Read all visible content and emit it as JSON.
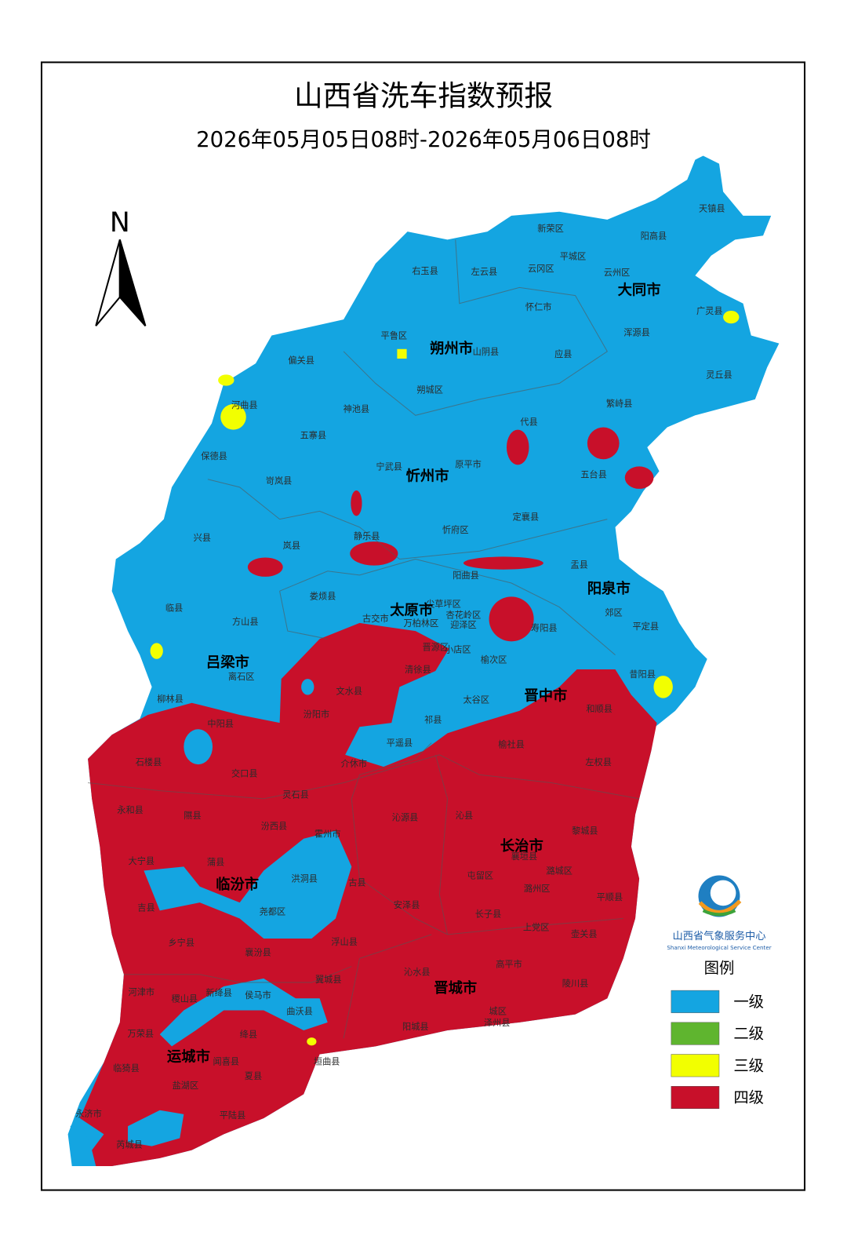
{
  "header": {
    "title": "山西省洗车指数预报",
    "subtitle": "2026年05月05日08时-2026年05月06日08时"
  },
  "north": "N",
  "logo": {
    "name": "山西省气象服务中心",
    "name_en": "Shanxi Meteorological Service Center"
  },
  "legend": {
    "title": "图例",
    "items": [
      {
        "label": "一级",
        "color": "#14a5e1"
      },
      {
        "label": "二级",
        "color": "#5fb52f"
      },
      {
        "label": "三级",
        "color": "#f2ff00"
      },
      {
        "label": "四级",
        "color": "#c8102a"
      }
    ]
  },
  "cities": [
    "大同市",
    "朔州市",
    "忻州市",
    "太原市",
    "阳泉市",
    "吕梁市",
    "晋中市",
    "长治市",
    "临汾市",
    "晋城市",
    "运城市"
  ],
  "counties": [
    "天镇县",
    "新荣区",
    "阳高县",
    "平城区",
    "右玉县",
    "左云县",
    "云冈区",
    "云州区",
    "怀仁市",
    "广灵县",
    "平鲁区",
    "山阴县",
    "应县",
    "浑源县",
    "灵丘县",
    "偏关县",
    "河曲县",
    "朔城区",
    "神池县",
    "繁峙县",
    "代县",
    "五寨县",
    "保德县",
    "宁武县",
    "原平市",
    "五台县",
    "岢岚县",
    "静乐县",
    "忻府区",
    "定襄县",
    "兴县",
    "岚县",
    "阳曲县",
    "盂县",
    "娄烦县",
    "临县",
    "方山县",
    "寿阳县",
    "平定县",
    "郊区",
    "昔阳县",
    "离石区",
    "文水县",
    "榆次区",
    "太谷区",
    "和顺县",
    "柳林县",
    "中阳县",
    "汾阳市",
    "祁县",
    "平遥县",
    "榆社县",
    "左权县",
    "石楼县",
    "交口县",
    "介休市",
    "灵石县",
    "永和县",
    "隰县",
    "汾西县",
    "沁源县",
    "沁县",
    "黎城县",
    "霍州市",
    "大宁县",
    "蒲县",
    "襄垣县",
    "洪洞县",
    "古县",
    "潞城区",
    "吉县",
    "屯留区",
    "潞州区",
    "平顺县",
    "安泽县",
    "尧都区",
    "长子县",
    "上党区",
    "壶关县",
    "乡宁县",
    "浮山县",
    "襄汾县",
    "沁水县",
    "高平市",
    "陵川县",
    "河津市",
    "稷山县",
    "新绛县",
    "侯马市",
    "翼城县",
    "曲沃县",
    "万荣县",
    "绛县",
    "阳城县",
    "泽州县",
    "城区",
    "临猗县",
    "闻喜县",
    "垣曲县",
    "盐湖区",
    "夏县",
    "永济市",
    "平陆县",
    "芮城县",
    "尖草坪区",
    "杏花岭区",
    "万柏林区",
    "迎泽区",
    "晋源区",
    "小店区",
    "古交市",
    "清徐县"
  ]
}
